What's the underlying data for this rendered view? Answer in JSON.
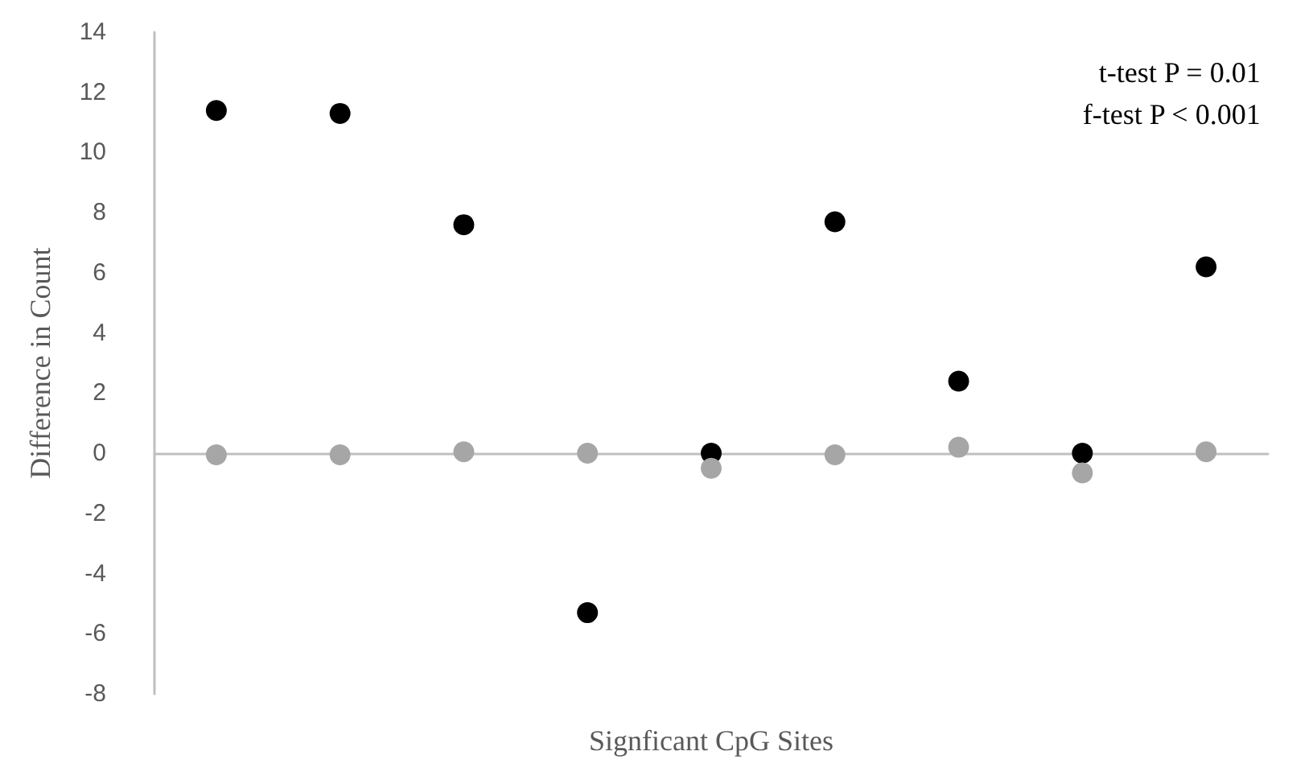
{
  "chart_data": {
    "type": "scatter",
    "xlabel": "Signficant CpG Sites",
    "ylabel": "Difference in Count",
    "annotations": [
      "t-test P = 0.01",
      "f-test P < 0.001"
    ],
    "categories": [
      null,
      null,
      null,
      null,
      null,
      null,
      null,
      null,
      null
    ],
    "series": [
      {
        "color": "#000000",
        "values": [
          11.4,
          11.3,
          7.6,
          -5.3,
          0,
          7.7,
          2.4,
          0,
          6.2
        ]
      },
      {
        "color": "#a6a6a6",
        "values": [
          -0.05,
          -0.05,
          0.05,
          0,
          -0.5,
          -0.05,
          0.2,
          -0.65,
          0.05
        ]
      }
    ],
    "ylim": [
      -8,
      14
    ],
    "yticks": [
      -8,
      -6,
      -4,
      -2,
      0,
      2,
      4,
      6,
      8,
      10,
      12,
      14
    ],
    "marker": "circle",
    "tick_labels": "y"
  }
}
